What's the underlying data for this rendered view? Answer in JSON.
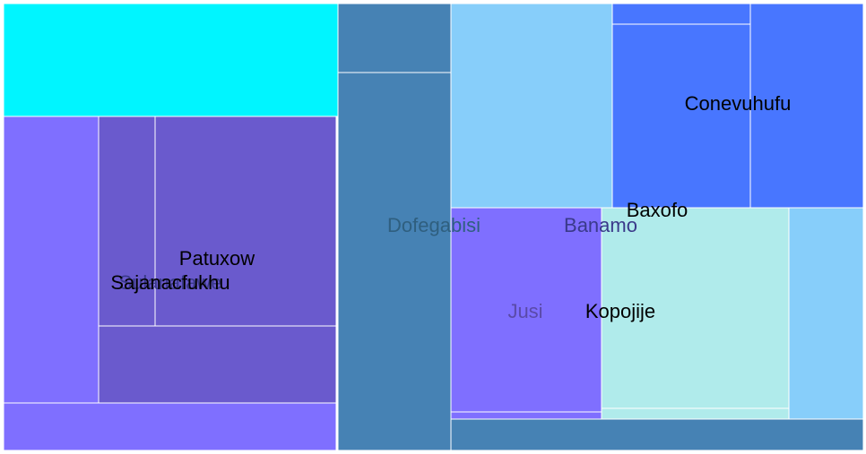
{
  "chart_data": {
    "type": "treemap",
    "title": "",
    "tiles": [
      {
        "color": "#00f5ff"
      },
      {
        "color": "#7f6fff"
      },
      {
        "color": "#6a5acd"
      },
      {
        "color": "#6a5acd"
      },
      {
        "color": "#6a5acd"
      },
      {
        "color": "#7f6fff"
      },
      {
        "color": "#4682b4"
      },
      {
        "color": "#4682b4"
      },
      {
        "color": "#87cefa"
      },
      {
        "color": "#4876ff"
      },
      {
        "color": "#4876ff"
      },
      {
        "color": "#4876ff"
      },
      {
        "color": "#7f6fff"
      },
      {
        "color": "#b0ebeb"
      },
      {
        "color": "#87cefa"
      },
      {
        "color": "#7f6fff"
      },
      {
        "color": "#b0ebeb"
      },
      {
        "color": "#4682b4"
      }
    ],
    "labels": [
      {
        "text": "Patuxow",
        "color": "#000000"
      },
      {
        "text": "Sulanafawe",
        "color": "#3a3a8a"
      },
      {
        "text": "Sajanacfukhu",
        "color": "#000000"
      },
      {
        "text": "Dofegabisi",
        "color": "#2f5f7f"
      },
      {
        "text": "Banamo",
        "color": "#3a3a8a"
      },
      {
        "text": "Baxofo",
        "color": "#000000"
      },
      {
        "text": "Conevuhufu",
        "color": "#000000"
      },
      {
        "text": "Jusi",
        "color": "#5a4aa8"
      },
      {
        "text": "Kopojije",
        "color": "#000000"
      }
    ]
  }
}
